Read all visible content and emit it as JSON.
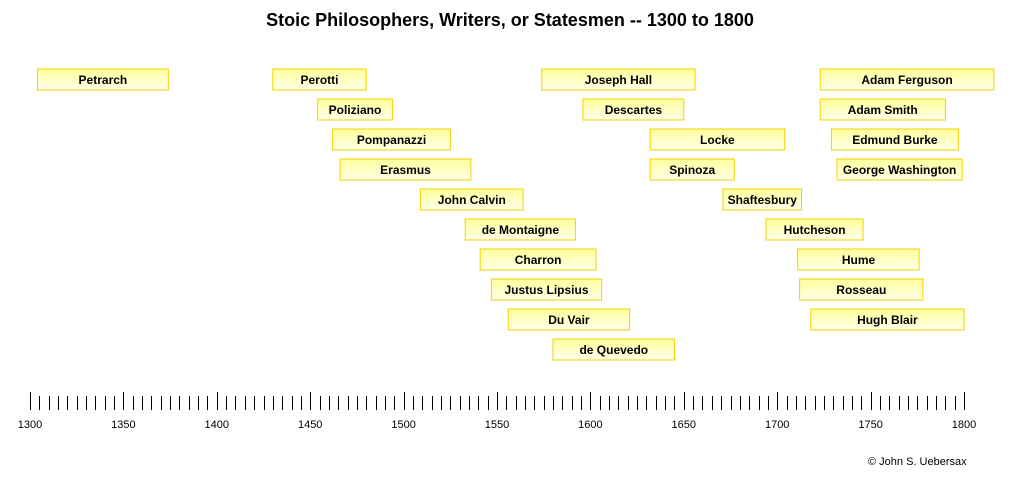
{
  "chart_data": {
    "type": "bar",
    "title": "Stoic Philosophers, Writers, or Statesmen -- 1300 to 1800",
    "xlabel": "",
    "ylabel": "",
    "xlim": [
      1300,
      1800
    ],
    "tick_step": 50,
    "minor_tick_step": 5,
    "x_ticks": [
      "1300",
      "1350",
      "1400",
      "1450",
      "1500",
      "1550",
      "1600",
      "1650",
      "1700",
      "1750",
      "1800"
    ],
    "series": [
      {
        "name": "Petrarch",
        "start": 1304,
        "end": 1374
      },
      {
        "name": "Perotti",
        "start": 1430,
        "end": 1480
      },
      {
        "name": "Poliziano",
        "start": 1454,
        "end": 1494
      },
      {
        "name": "Pompanazzi",
        "start": 1462,
        "end": 1525
      },
      {
        "name": "Erasmus",
        "start": 1466,
        "end": 1536
      },
      {
        "name": "John Calvin",
        "start": 1509,
        "end": 1564
      },
      {
        "name": "de Montaigne",
        "start": 1533,
        "end": 1592
      },
      {
        "name": "Charron",
        "start": 1541,
        "end": 1603
      },
      {
        "name": "Justus Lipsius",
        "start": 1547,
        "end": 1606
      },
      {
        "name": "Du Vair",
        "start": 1556,
        "end": 1621
      },
      {
        "name": "de Quevedo",
        "start": 1580,
        "end": 1645
      },
      {
        "name": "Joseph Hall",
        "start": 1574,
        "end": 1656
      },
      {
        "name": "Descartes",
        "start": 1596,
        "end": 1650
      },
      {
        "name": "Locke",
        "start": 1632,
        "end": 1704
      },
      {
        "name": "Spinoza",
        "start": 1632,
        "end": 1677
      },
      {
        "name": "Shaftesbury",
        "start": 1671,
        "end": 1713
      },
      {
        "name": "Hutcheson",
        "start": 1694,
        "end": 1746
      },
      {
        "name": "Hume",
        "start": 1711,
        "end": 1776
      },
      {
        "name": "Rosseau",
        "start": 1712,
        "end": 1778
      },
      {
        "name": "Hugh Blair",
        "start": 1718,
        "end": 1800
      },
      {
        "name": "Adam Ferguson",
        "start": 1723,
        "end": 1816
      },
      {
        "name": "Adam Smith",
        "start": 1723,
        "end": 1790
      },
      {
        "name": "Edmund Burke",
        "start": 1729,
        "end": 1797
      },
      {
        "name": "George Washington",
        "start": 1732,
        "end": 1799
      }
    ],
    "grid": false,
    "legend": "none"
  },
  "copyright": "© John S. Uebersax",
  "colors": {
    "bar_top": "#ffff9c",
    "bar_bottom": "#ffffea",
    "bar_border": "#f2d200",
    "axis": "#000000"
  }
}
